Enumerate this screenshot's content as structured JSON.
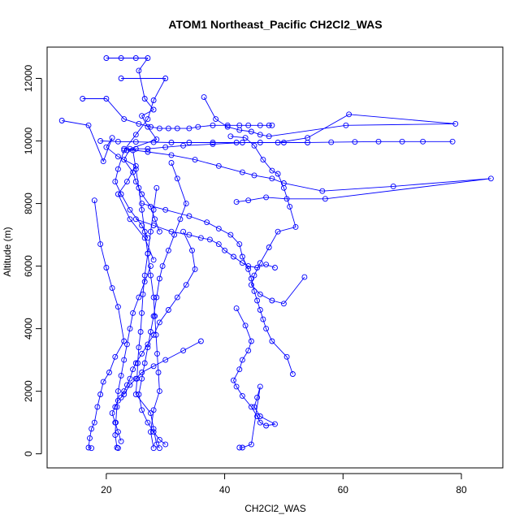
{
  "chart_data": {
    "type": "scatter",
    "title": "ATOM1 Northeast_Pacific CH2Cl2_WAS",
    "xlabel": "CH2Cl2_WAS",
    "ylabel": "Altitude (m)",
    "xlim": [
      10,
      87
    ],
    "ylim": [
      -450,
      13000
    ],
    "x_ticks": [
      20,
      40,
      60,
      80
    ],
    "y_ticks": [
      0,
      2000,
      4000,
      6000,
      8000,
      10000,
      12000
    ],
    "grid": false,
    "colors": {
      "series": "#0000ff",
      "axis": "#000000",
      "background": "#ffffff"
    },
    "series": [
      {
        "x": [
          20.0,
          22.5,
          25.0,
          27.0,
          25.5,
          26.5,
          28.0,
          26.0,
          27.0,
          28.5,
          24.0,
          23.0,
          24.5,
          25.0,
          26.0,
          27.5,
          28.2,
          29.0
        ],
        "y": [
          12650,
          12650,
          12650,
          12650,
          12250,
          11350,
          11000,
          10800,
          10450,
          10050,
          9750,
          9400,
          9000,
          8700,
          8300,
          7900,
          7500,
          7100
        ]
      },
      {
        "x": [
          12.5,
          17.0,
          19.5,
          21.0,
          20.0,
          22.0,
          25.0,
          23.5,
          22.0,
          24.0,
          26.5,
          28.0
        ],
        "y": [
          10650,
          10500,
          9350,
          10100,
          9800,
          9500,
          9200,
          8700,
          8300,
          7500,
          6900,
          6200
        ]
      },
      {
        "x": [
          22.5,
          30.0,
          28.0,
          27.0,
          25.0,
          23.0,
          22.0,
          21.5,
          22.5,
          24.0,
          26.0,
          27.0
        ],
        "y": [
          12000,
          12000,
          11300,
          10700,
          10200,
          9700,
          9100,
          8700,
          8300,
          7800,
          7300,
          6900
        ]
      },
      {
        "x": [
          16.0,
          20.0,
          23.0,
          25.5,
          27.5,
          29.0,
          30.5,
          32.0,
          34.0,
          35.5,
          38.0,
          40.5,
          42.5,
          44.0,
          46.0,
          47.5,
          48.0
        ],
        "y": [
          11350,
          11350,
          10700,
          10550,
          10450,
          10400,
          10400,
          10400,
          10400,
          10450,
          10500,
          10500,
          10500,
          10500,
          10500,
          10500,
          10500
        ]
      },
      {
        "x": [
          36.5,
          38.5,
          40.5,
          42.5,
          44.5,
          46.0,
          47.5,
          60.5,
          79.0,
          61.0,
          54.0,
          49.0,
          43.0,
          38.0,
          33.0,
          30.0,
          27.0,
          25.0,
          23.5
        ],
        "y": [
          11400,
          10700,
          10450,
          10350,
          10300,
          10200,
          10150,
          10500,
          10550,
          10850,
          10100,
          9950,
          9950,
          9900,
          9850,
          9800,
          9750,
          9750,
          9700
        ]
      },
      {
        "x": [
          19.0,
          22.0,
          25.0,
          28.0,
          31.0,
          34.0,
          38.0,
          42.0,
          46.0,
          50.0,
          54.0,
          58.0,
          62.0,
          66.0,
          70.0,
          73.5,
          78.5
        ],
        "y": [
          10000,
          9980,
          9970,
          9960,
          9950,
          9950,
          9950,
          9950,
          9950,
          9950,
          9950,
          9960,
          9970,
          9980,
          9980,
          9980,
          9980
        ]
      },
      {
        "x": [
          23.0,
          27.0,
          31.0,
          35.0,
          39.0,
          43.0,
          45.0,
          48.0,
          50.0,
          56.5,
          68.5,
          85.0,
          57.0,
          50.5,
          47.0,
          44.0,
          42.0
        ],
        "y": [
          9750,
          9650,
          9550,
          9400,
          9200,
          9000,
          8900,
          8800,
          8650,
          8400,
          8550,
          8800,
          8150,
          8150,
          8200,
          8100,
          8050
        ]
      },
      {
        "x": [
          41.0,
          43.5,
          45.0,
          46.5,
          48.0,
          49.0,
          50.0,
          51.0,
          52.0,
          49.0,
          47.5,
          46.0,
          45.0,
          44.5,
          46.0,
          48.0,
          50.0,
          53.5
        ],
        "y": [
          10150,
          10100,
          9850,
          9400,
          9050,
          8950,
          8500,
          7900,
          7250,
          7100,
          6600,
          6100,
          5700,
          5400,
          5100,
          4900,
          4800,
          5650
        ]
      },
      {
        "x": [
          18.0,
          19.0,
          20.0,
          21.0,
          22.0,
          23.0,
          21.5,
          20.5,
          19.5,
          19.0,
          18.5,
          18.0,
          17.5,
          17.2,
          17.0,
          17.5
        ],
        "y": [
          8100,
          6700,
          5950,
          5300,
          4700,
          3600,
          3100,
          2600,
          2300,
          1900,
          1500,
          1000,
          800,
          500,
          200,
          180
        ]
      },
      {
        "x": [
          26.0,
          30.0,
          34.0,
          37.0,
          39.0,
          41.0,
          42.5,
          43.0,
          44.0,
          44.5,
          45.0,
          45.5,
          46.0,
          46.5,
          47.0,
          48.0,
          50.5,
          51.5
        ],
        "y": [
          8000,
          7800,
          7600,
          7400,
          7200,
          7000,
          6700,
          6300,
          5900,
          5600,
          5200,
          4900,
          4600,
          4300,
          4000,
          3600,
          3100,
          2550
        ]
      },
      {
        "x": [
          25.0,
          28.0,
          31.0,
          34.0,
          36.0,
          37.5,
          39.0,
          40.0,
          41.5,
          43.0,
          44.0,
          45.5,
          47.0,
          48.5
        ],
        "y": [
          7500,
          7300,
          7100,
          7000,
          6900,
          6850,
          6700,
          6500,
          6300,
          6100,
          6000,
          5950,
          6050,
          5950
        ]
      },
      {
        "x": [
          42.0,
          43.5,
          44.5,
          44.0,
          43.0,
          42.5,
          41.5,
          42.0,
          43.0,
          44.5,
          45.5,
          46.0,
          47.0,
          48.5,
          46.0,
          45.0,
          45.5,
          46.0,
          44.5,
          43.0,
          42.5
        ],
        "y": [
          4650,
          4100,
          3600,
          3300,
          3000,
          2700,
          2350,
          2150,
          1850,
          1500,
          1200,
          1000,
          900,
          950,
          1200,
          1500,
          1800,
          2150,
          300,
          200,
          200
        ]
      },
      {
        "x": [
          33.0,
          34.5,
          35.0,
          33.5,
          32.0,
          30.5,
          29.0,
          28.0,
          27.0,
          26.0,
          25.0,
          24.5,
          24.0,
          23.5,
          23.0,
          22.5
        ],
        "y": [
          7100,
          6500,
          5900,
          5400,
          5000,
          4600,
          4200,
          3800,
          3500,
          3200,
          2900,
          2700,
          2400,
          2200,
          2000,
          1800
        ]
      },
      {
        "x": [
          36.0,
          33.0,
          30.0,
          28.0,
          26.0,
          25.0,
          24.0,
          23.0,
          22.0,
          21.5,
          21.0,
          21.5,
          22.0,
          22.5
        ],
        "y": [
          3600,
          3300,
          3000,
          2800,
          2600,
          2400,
          2200,
          1900,
          1700,
          1500,
          1300,
          1000,
          700,
          400
        ]
      },
      {
        "x": [
          31.0,
          32.0,
          33.5,
          32.5,
          31.5,
          30.5,
          29.5,
          29.0,
          28.5,
          28.0,
          27.5,
          27.0,
          26.5,
          26.0,
          25.5,
          26.0,
          27.0,
          28.0,
          29.0,
          30.0
        ],
        "y": [
          9300,
          8800,
          8000,
          7500,
          7000,
          6500,
          6000,
          5600,
          5000,
          4400,
          3900,
          3400,
          2900,
          2400,
          1900,
          1400,
          1000,
          700,
          450,
          300
        ]
      },
      {
        "x": [
          27.5,
          26.5,
          25.5,
          24.5,
          24.0,
          23.5,
          23.0,
          22.5,
          22.0,
          21.8,
          21.6,
          21.5,
          21.8,
          22.0
        ],
        "y": [
          6000,
          5500,
          5000,
          4500,
          4000,
          3500,
          3000,
          2500,
          2000,
          1500,
          1000,
          600,
          200,
          180
        ]
      },
      {
        "x": [
          28.5,
          28.0,
          27.5,
          27.0,
          26.5,
          26.2,
          26.0,
          25.8,
          25.5,
          25.3,
          25.2,
          25.0,
          27.5,
          28.0,
          28.5,
          29.0
        ],
        "y": [
          8500,
          7800,
          7100,
          6400,
          5700,
          5100,
          4500,
          3900,
          3400,
          2900,
          2400,
          1900,
          1300,
          800,
          300,
          180
        ]
      },
      {
        "x": [
          24.5,
          25.0,
          25.5,
          26.0,
          26.5,
          27.0,
          27.5,
          28.0,
          28.2,
          28.4,
          28.6,
          28.8,
          29.0,
          28.0,
          27.5,
          28.0
        ],
        "y": [
          9700,
          9100,
          8500,
          7800,
          7100,
          6400,
          5700,
          5000,
          4400,
          3800,
          3200,
          2600,
          2000,
          1400,
          700,
          180
        ]
      }
    ]
  }
}
